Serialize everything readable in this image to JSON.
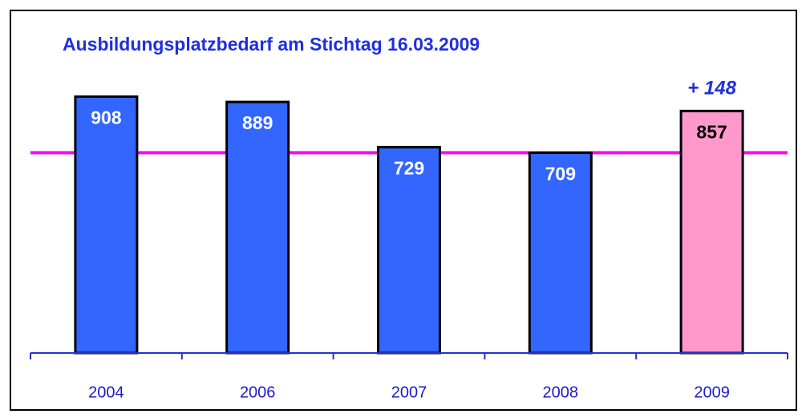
{
  "chart_data": {
    "type": "bar",
    "title": "Ausbildungsplatzbedarf am Stichtag 16.03.2009",
    "categories": [
      "2004",
      "2006",
      "2007",
      "2008",
      "2009"
    ],
    "values": [
      908,
      889,
      729,
      709,
      857
    ],
    "colors": [
      "#3366ff",
      "#3366ff",
      "#3366ff",
      "#3366ff",
      "#ff99cc"
    ],
    "label_colors": [
      "#ffffff",
      "#ffffff",
      "#ffffff",
      "#ffffff",
      "#000000"
    ],
    "annotation": "+ 148",
    "reference_line_color": "#ff00ff"
  }
}
